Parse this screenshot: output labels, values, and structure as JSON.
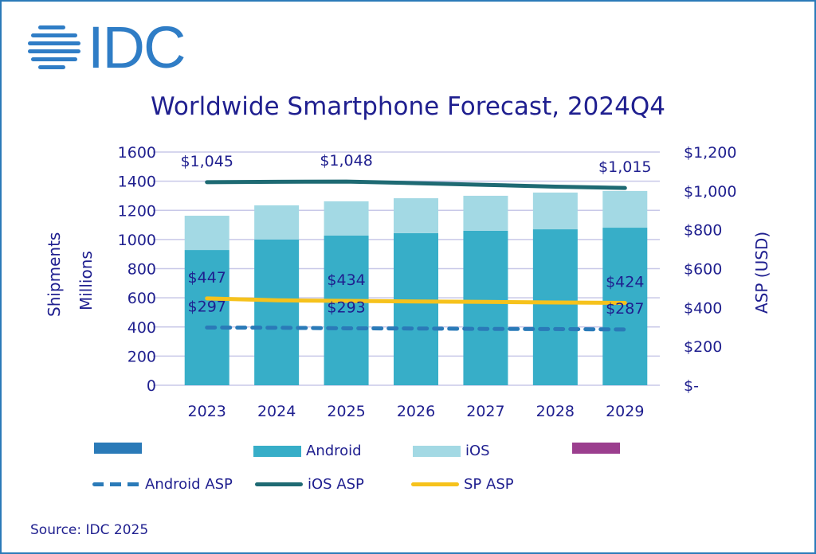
{
  "logo": {
    "text": "IDC",
    "icon": "globe-stripes-icon",
    "color": "#2f7dc6"
  },
  "footer": {
    "source": "Source: IDC 2025"
  },
  "chart_data": {
    "type": "bar",
    "subtype": "stacked-bar-with-lines",
    "title": "Worldwide Smartphone Forecast, 2024Q4",
    "xlabel": "",
    "ylabel": "Shipments Millions",
    "ylabel_lines": [
      "Shipments",
      "Millions"
    ],
    "y2label": "ASP (USD)",
    "ylim": [
      0,
      1600
    ],
    "y2lim": [
      0,
      1200
    ],
    "yticks": [
      0,
      200,
      400,
      600,
      800,
      1000,
      1200,
      1400,
      1600
    ],
    "ytick_labels": [
      "0",
      "200",
      "400",
      "600",
      "800",
      "1000",
      "1200",
      "1400",
      "1600"
    ],
    "y2ticks": [
      0,
      200,
      400,
      600,
      800,
      1000,
      1200
    ],
    "y2tick_labels": [
      "$-",
      "$200",
      "$400",
      "$600",
      "$800",
      "$1,000",
      "$1,200"
    ],
    "grid": true,
    "categories": [
      "2023",
      "2024",
      "2025",
      "2026",
      "2027",
      "2028",
      "2029"
    ],
    "series": [
      {
        "name": "",
        "kind": "bar",
        "color": "#2a7ab8",
        "values": [
          0,
          0,
          0,
          0,
          0,
          0,
          0
        ]
      },
      {
        "name": "Android",
        "kind": "bar",
        "color": "#37aec8",
        "values": [
          928,
          1000,
          1027,
          1044,
          1060,
          1070,
          1081
        ]
      },
      {
        "name": "iOS",
        "kind": "bar",
        "color": "#a3d9e4",
        "values": [
          235,
          234,
          235,
          239,
          240,
          252,
          252
        ]
      },
      {
        "name": "",
        "kind": "bar",
        "color": "#9b3e8e",
        "values": [
          0,
          0,
          0,
          0,
          0,
          0,
          0
        ]
      },
      {
        "name": "Android ASP",
        "kind": "line",
        "axis": "right",
        "dash": true,
        "color": "#2a7ab8",
        "values": [
          297,
          296,
          293,
          292,
          290,
          289,
          287
        ]
      },
      {
        "name": "iOS ASP",
        "kind": "line",
        "axis": "right",
        "dash": false,
        "color": "#1e6a73",
        "values": [
          1045,
          1047,
          1048,
          1040,
          1031,
          1022,
          1015
        ]
      },
      {
        "name": "SP ASP",
        "kind": "line",
        "axis": "right",
        "dash": false,
        "color": "#f6c21c",
        "values": [
          447,
          437,
          434,
          431,
          429,
          426,
          424
        ]
      }
    ],
    "annotations": [
      {
        "series": "iOS ASP",
        "category": "2023",
        "text": "$1,045"
      },
      {
        "series": "iOS ASP",
        "category": "2025",
        "text": "$1,048"
      },
      {
        "series": "iOS ASP",
        "category": "2029",
        "text": "$1,015"
      },
      {
        "series": "SP ASP",
        "category": "2023",
        "text": "$447"
      },
      {
        "series": "SP ASP",
        "category": "2025",
        "text": "$434"
      },
      {
        "series": "SP ASP",
        "category": "2029",
        "text": "$424"
      },
      {
        "series": "Android ASP",
        "category": "2023",
        "text": "$297"
      },
      {
        "series": "Android ASP",
        "category": "2025",
        "text": "$293"
      },
      {
        "series": "Android ASP",
        "category": "2029",
        "text": "$287"
      }
    ],
    "legend": {
      "placement": "bottom",
      "rows": [
        [
          {
            "label": "",
            "type": "box",
            "color": "#2a7ab8"
          },
          {
            "label": "Android",
            "type": "box",
            "color": "#37aec8"
          },
          {
            "label": "iOS",
            "type": "box",
            "color": "#a3d9e4"
          },
          {
            "label": "",
            "type": "box",
            "color": "#9b3e8e"
          }
        ],
        [
          {
            "label": "Android ASP",
            "type": "dash",
            "color": "#2a7ab8"
          },
          {
            "label": "iOS ASP",
            "type": "line",
            "color": "#1e6a73"
          },
          {
            "label": "SP ASP",
            "type": "line",
            "color": "#f6c21c"
          }
        ]
      ]
    },
    "colors": {
      "text": "#1f1f8f",
      "grid": "#c8c8e8",
      "frame": "#2a7ab8"
    }
  }
}
